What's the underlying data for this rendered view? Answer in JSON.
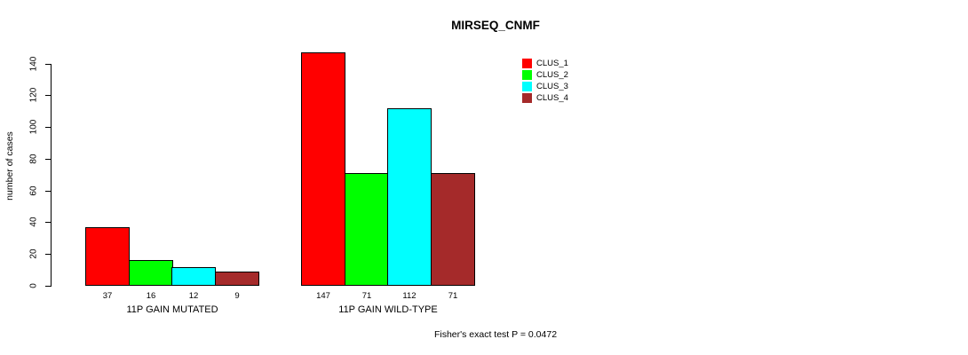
{
  "chart_data": {
    "type": "bar",
    "title": "MIRSEQ_CNMF",
    "ylabel": "number of cases",
    "ylim": [
      0,
      140
    ],
    "yticks": [
      0,
      20,
      40,
      60,
      80,
      100,
      120,
      140
    ],
    "categories": [
      "11P GAIN MUTATED",
      "11P GAIN WILD-TYPE"
    ],
    "series": [
      {
        "name": "CLUS_1",
        "color": "#FF0000",
        "values": [
          37,
          147
        ]
      },
      {
        "name": "CLUS_2",
        "color": "#00FF00",
        "values": [
          16,
          71
        ]
      },
      {
        "name": "CLUS_3",
        "color": "#00FFFF",
        "values": [
          12,
          112
        ]
      },
      {
        "name": "CLUS_4",
        "color": "#A52A2A",
        "values": [
          9,
          71
        ]
      }
    ],
    "bar_value_labels": [
      [
        "37",
        "16",
        "12",
        "9"
      ],
      [
        "147",
        "71",
        "112",
        "71"
      ]
    ],
    "annotation": "Fisher's exact test P = 0.0472",
    "legend_position": "top-right",
    "grid": false,
    "axis_color": "#000000",
    "background_color": "#ffffff"
  }
}
